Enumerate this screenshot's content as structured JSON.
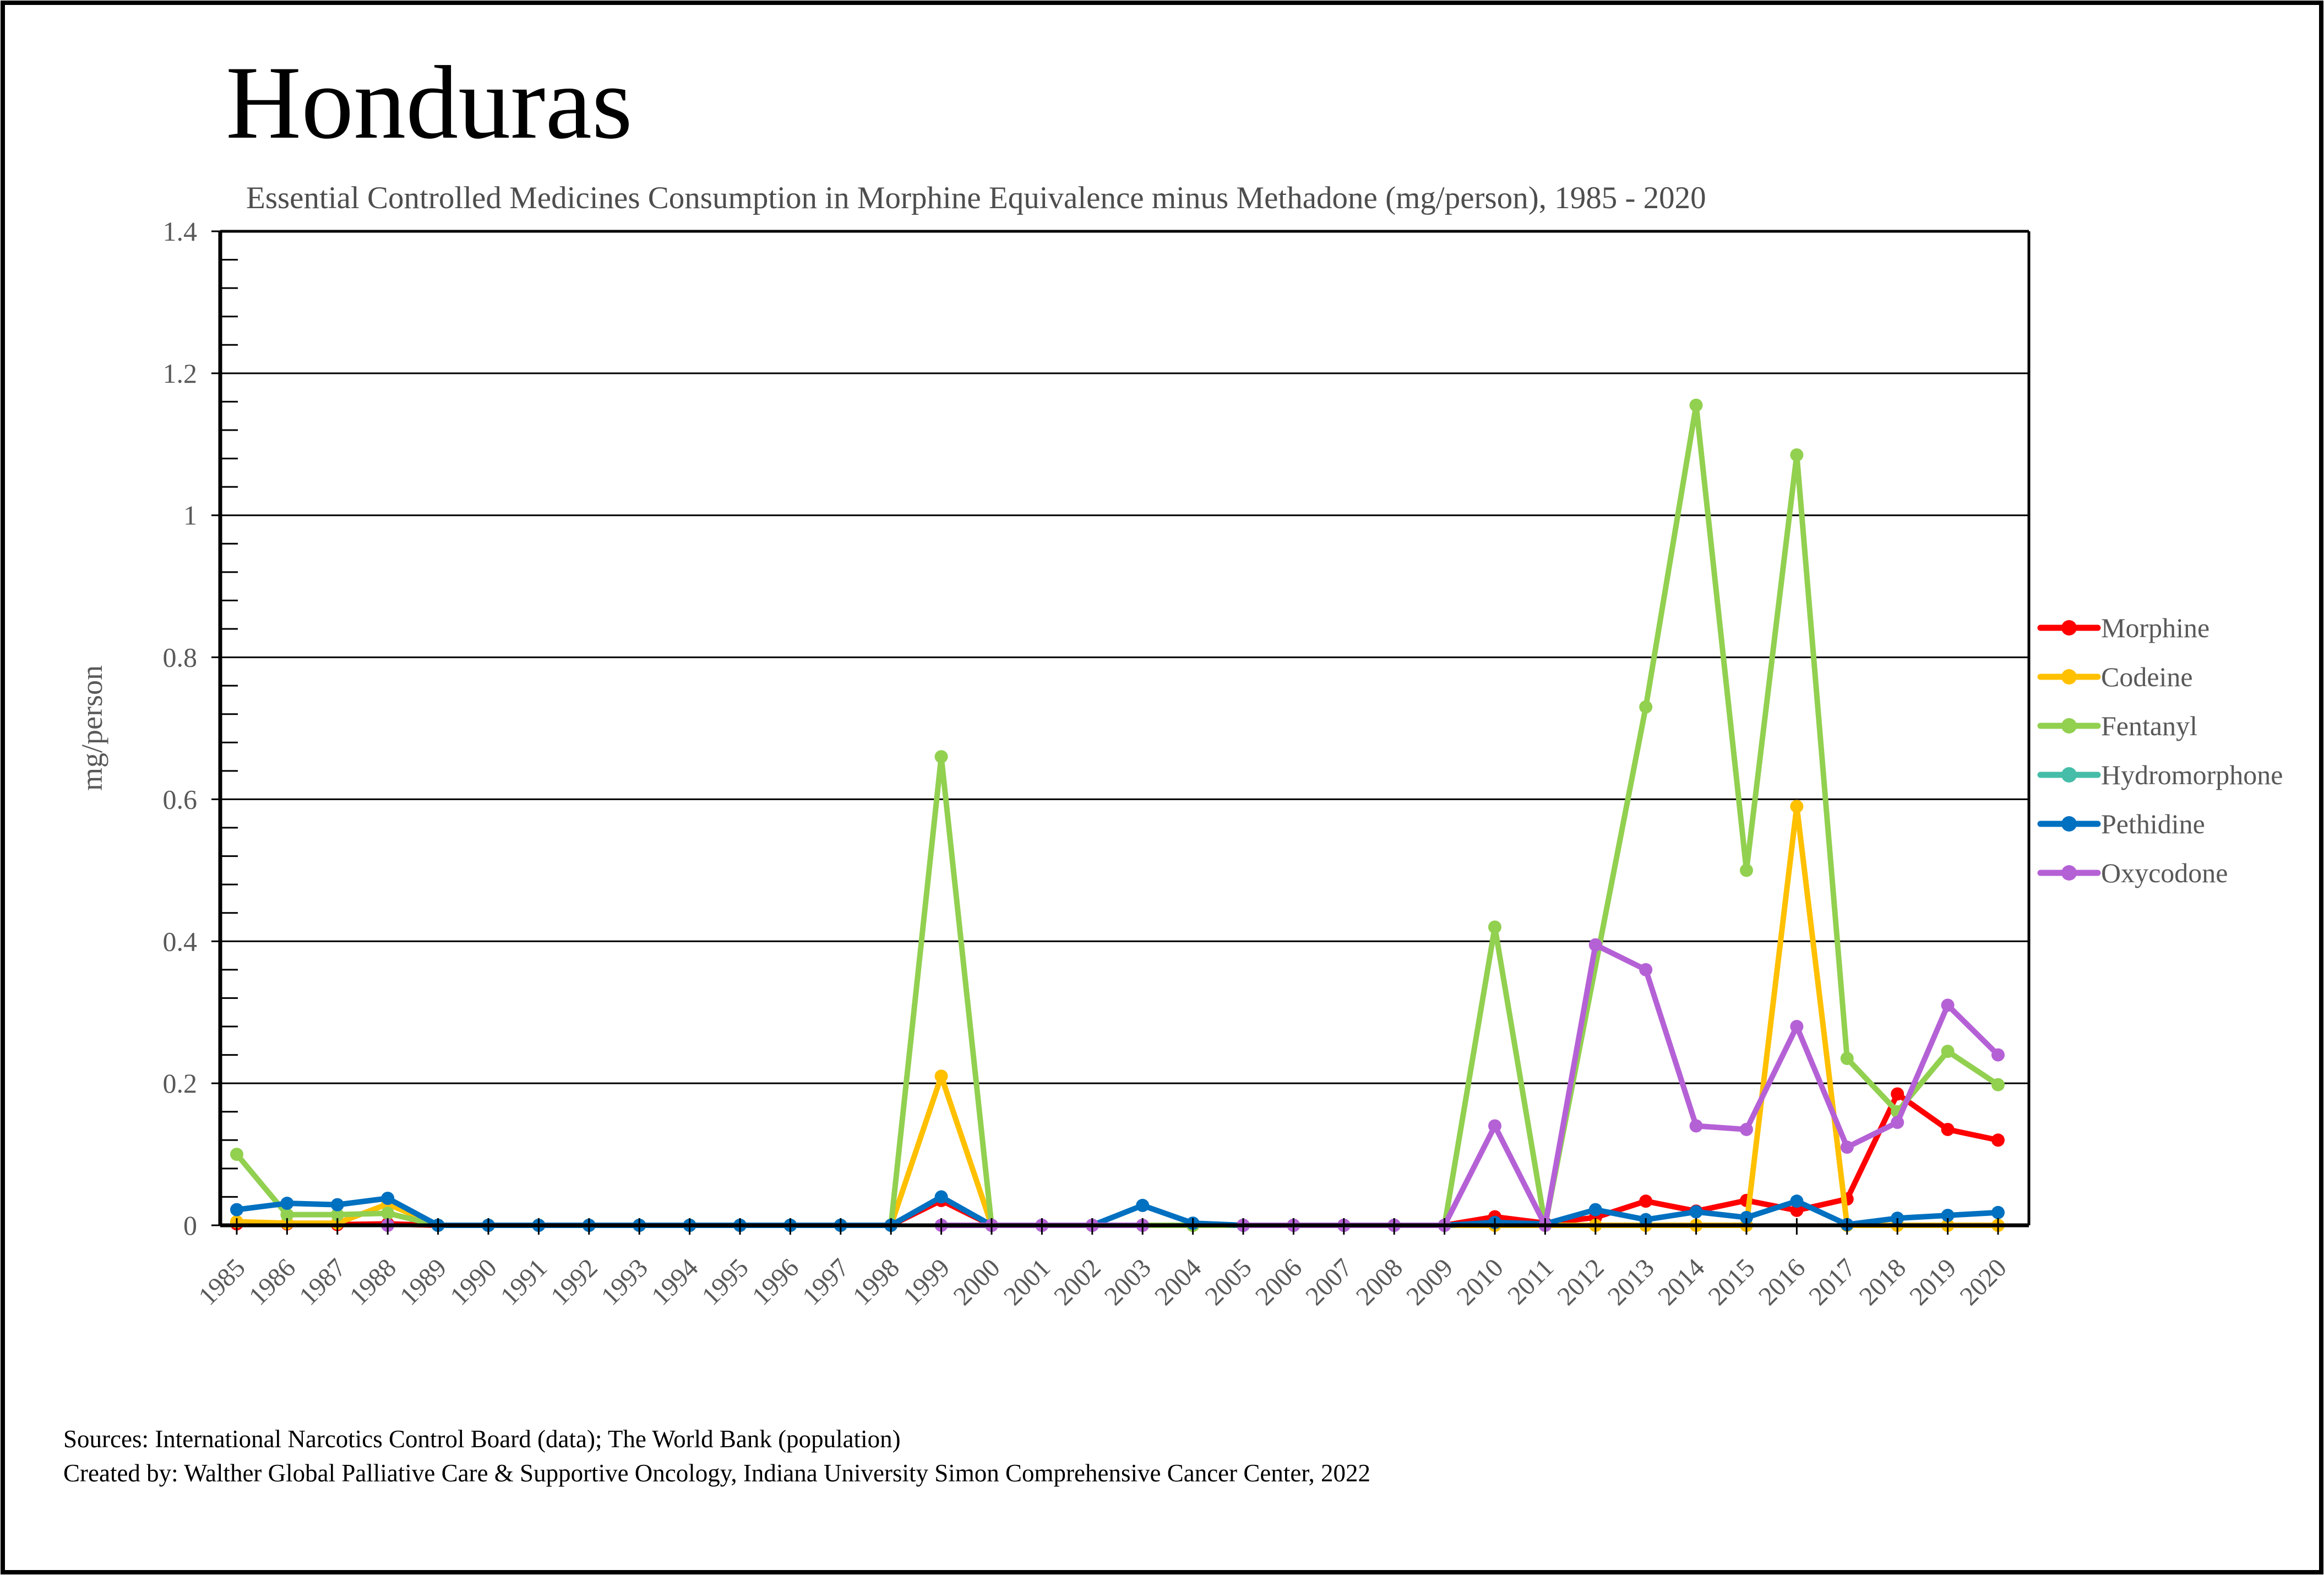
{
  "title": "Honduras",
  "subtitle": "Essential Controlled Medicines Consumption in Morphine Equivalence minus Methadone (mg/person), 1985 - 2020",
  "y_axis_title": "mg/person",
  "footer": {
    "line1": "Sources: International Narcotics Control Board (data); The World Bank (population)",
    "line2": "Created by: Walther Global Palliative Care & Supportive Oncology, Indiana University Simon Comprehensive Cancer Center, 2022"
  },
  "colors": {
    "morphine": "#FF0000",
    "codeine": "#FFC000",
    "fentanyl": "#92D050",
    "hydromorphone": "#45BDA8",
    "pethidine": "#0070C0",
    "oxycodone": "#B561D6",
    "axis_text": "#595959",
    "grid": "#000000"
  },
  "chart_data": {
    "type": "line",
    "title": "Honduras",
    "subtitle": "Essential Controlled Medicines Consumption in Morphine Equivalence minus Methadone (mg/person), 1985 - 2020",
    "xlabel": "",
    "ylabel": "mg/person",
    "ylim": [
      0,
      1.4
    ],
    "ytick_step": 0.2,
    "ytick_labels": [
      "0",
      "0.2",
      "0.4",
      "0.6",
      "0.8",
      "1",
      "1.2",
      "1.4"
    ],
    "grid": true,
    "legend_position": "right",
    "categories": [
      "1985",
      "1986",
      "1987",
      "1988",
      "1989",
      "1990",
      "1991",
      "1992",
      "1993",
      "1994",
      "1995",
      "1996",
      "1997",
      "1998",
      "1999",
      "2000",
      "2001",
      "2002",
      "2003",
      "2004",
      "2005",
      "2006",
      "2007",
      "2008",
      "2009",
      "2010",
      "2011",
      "2012",
      "2013",
      "2014",
      "2015",
      "2016",
      "2017",
      "2018",
      "2019",
      "2020"
    ],
    "series": [
      {
        "name": "Morphine",
        "color_key": "morphine",
        "values": [
          0.002,
          0.002,
          0.001,
          0.002,
          0,
          0,
          0,
          0,
          0,
          0,
          0,
          0,
          0,
          0,
          0.035,
          0,
          0,
          0,
          0,
          0,
          0,
          0,
          0,
          0,
          0,
          0.012,
          0.003,
          0.011,
          0.034,
          0.02,
          0.035,
          0.021,
          0.037,
          0.185,
          0.135,
          0.12
        ]
      },
      {
        "name": "Codeine",
        "color_key": "codeine",
        "values": [
          0.005,
          0.003,
          0.003,
          0.03,
          0,
          0,
          0,
          0,
          0,
          0,
          0,
          0,
          0,
          0,
          0.21,
          0,
          0,
          0,
          0,
          0,
          0,
          0,
          0,
          0,
          0,
          0,
          0,
          0,
          0,
          0,
          0,
          0.59,
          0,
          0,
          0,
          0
        ]
      },
      {
        "name": "Fentanyl",
        "color_key": "fentanyl",
        "values": [
          0.1,
          0.015,
          0.015,
          0.017,
          0,
          0,
          0,
          0,
          0,
          0,
          0,
          0,
          0,
          0,
          0.66,
          0,
          0,
          0,
          0,
          0,
          0,
          0,
          0,
          0,
          0,
          0.42,
          0,
          {
            "v": 0.365,
            "marker": false
          },
          0.73,
          1.155,
          0.5,
          1.085,
          0.235,
          0.16,
          0.245,
          0.198
        ]
      },
      {
        "name": "Hydromorphone",
        "color_key": "hydromorphone",
        "values": [
          null,
          null,
          null,
          null,
          null,
          null,
          null,
          null,
          null,
          null,
          null,
          null,
          null,
          null,
          null,
          null,
          null,
          null,
          null,
          null,
          null,
          null,
          null,
          null,
          null,
          null,
          null,
          null,
          null,
          null,
          null,
          null,
          null,
          null,
          null,
          null
        ]
      },
      {
        "name": "Pethidine",
        "color_key": "pethidine",
        "values": [
          0.022,
          0.031,
          0.029,
          0.038,
          0,
          0,
          0,
          0,
          0,
          0,
          0,
          0,
          0,
          0,
          0.04,
          0,
          0,
          0,
          0.028,
          0.003,
          0,
          0,
          0,
          0,
          0,
          0.004,
          0.002,
          0.022,
          0.008,
          0.019,
          0.011,
          0.034,
          0.001,
          0.01,
          0.014,
          0.018
        ]
      },
      {
        "name": "Oxycodone",
        "color_key": "oxycodone",
        "values": [
          null,
          null,
          null,
          0,
          null,
          null,
          null,
          null,
          null,
          null,
          null,
          null,
          null,
          null,
          0,
          0,
          0,
          0,
          0,
          null,
          0,
          0,
          0,
          0,
          0,
          0.14,
          0,
          0.395,
          0.36,
          0.14,
          0.135,
          0.28,
          0.11,
          0.145,
          0.31,
          0.24
        ]
      }
    ]
  }
}
